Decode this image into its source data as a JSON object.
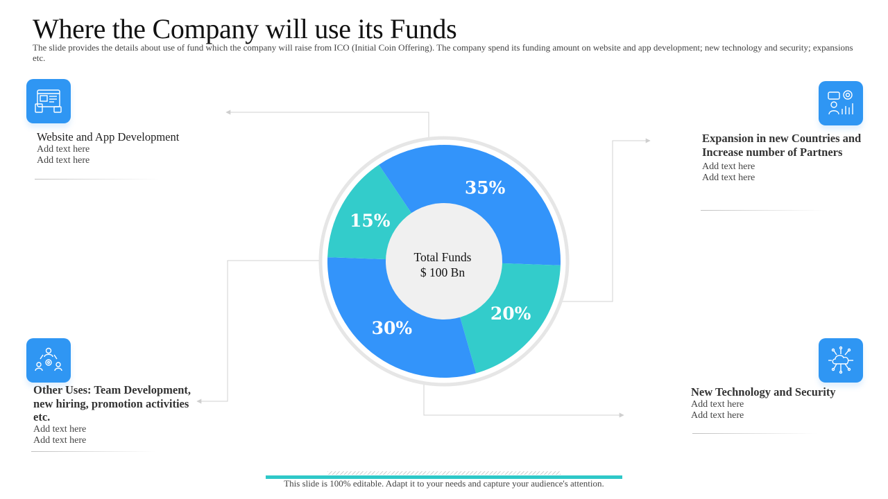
{
  "title": "Where the Company will use its Funds",
  "subtitle": "The slide provides the details about use of fund which the company will raise from ICO (Initial Coin Offering). The company spend its funding amount on website and app development; new technology and security; expansions etc.",
  "center": {
    "line1": "Total Funds",
    "line2": "$ 100 Bn"
  },
  "blocks": {
    "website": {
      "heading": "Website and App Development",
      "line1": "Add text here",
      "line2": "Add text here"
    },
    "expansion": {
      "heading": "Expansion in new Countries and Increase number of Partners",
      "line1": "Add text here",
      "line2": "Add text here"
    },
    "other": {
      "heading": "Other Uses: Team Development, new hiring, promotion activities etc.",
      "line1": "Add text here",
      "line2": "Add text here"
    },
    "technology": {
      "heading": "New Technology and Security",
      "line1": "Add text here",
      "line2": "Add text here"
    }
  },
  "icons": {
    "website": "web-design-icon",
    "expansion": "business-growth-icon",
    "other": "team-network-icon",
    "technology": "cloud-technology-icon"
  },
  "colors": {
    "accent_blue": "#3394fa",
    "accent_teal": "#33cccb",
    "icon_bg": "#2f96f3",
    "center": "#f0f0f0"
  },
  "footer": {
    "text": "This slide is 100% editable. Adapt it to your needs and capture your audience's attention."
  },
  "chart_data": {
    "type": "pie",
    "categories": [
      "Website and App Development",
      "Expansion in new Countries and Increase number of Partners",
      "New Technology and Security",
      "Other Uses: Team Development, new hiring, promotion activities etc."
    ],
    "values": [
      35,
      20,
      30,
      15
    ],
    "labels": [
      "35%",
      "20%",
      "30%",
      "15%"
    ],
    "colors": [
      "#3394fa",
      "#33cccb",
      "#3394fa",
      "#33cccb"
    ],
    "start_angle_deg": -124,
    "donut": true
  }
}
